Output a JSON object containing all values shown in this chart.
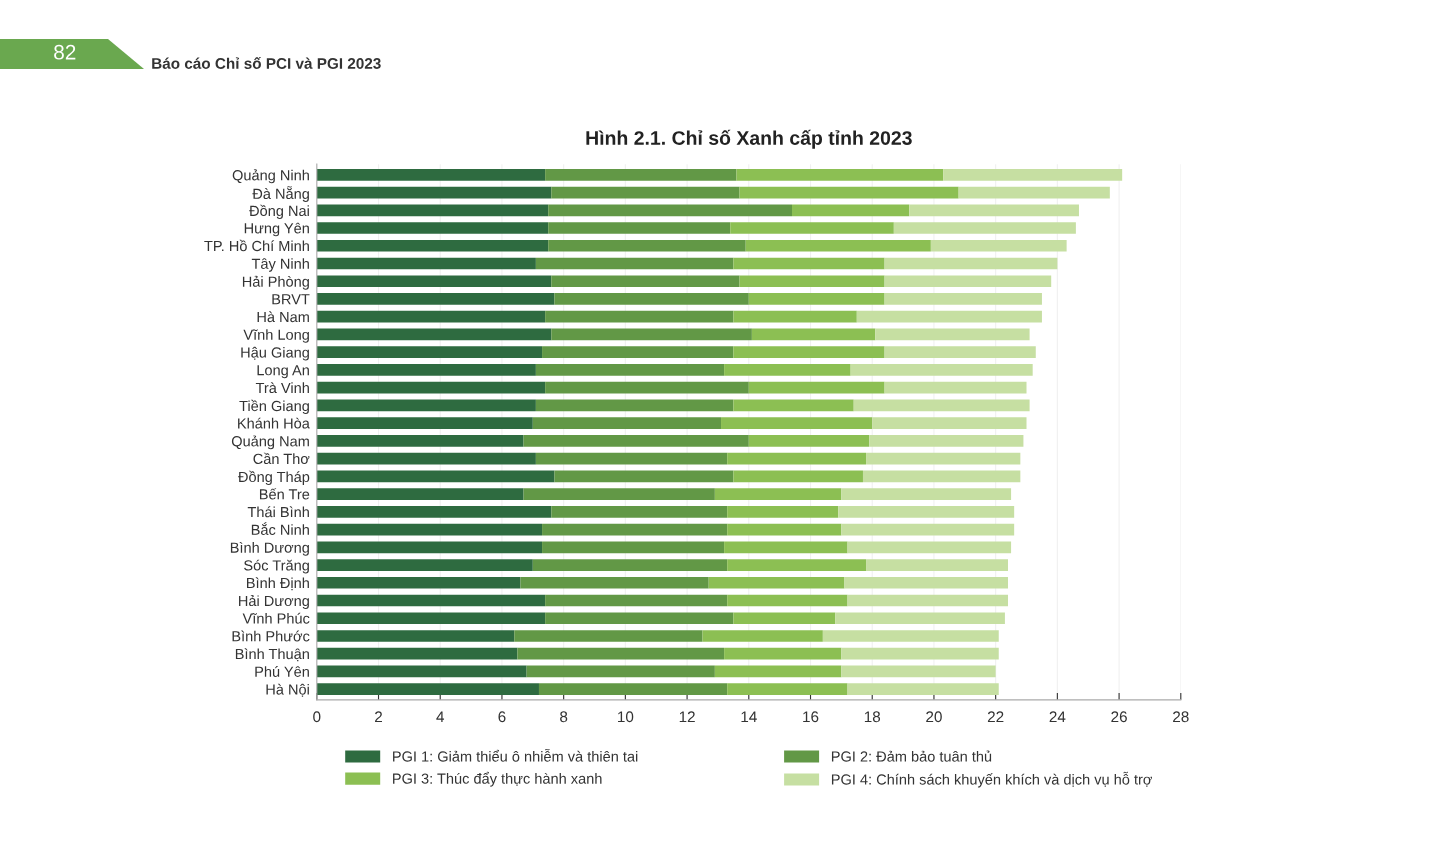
{
  "chart_data": {
    "type": "bar",
    "orientation": "horizontal",
    "stacked": true,
    "title": "Hình 2.1. Chỉ số Xanh cấp tỉnh 2023",
    "annotations": [
      "82",
      "Báo cáo Chỉ số PCI và PGI 2023"
    ],
    "categories": [
      "Quảng Ninh",
      "Đà Nẵng",
      "Đồng Nai",
      "Hưng Yên",
      "TP. Hồ Chí Minh",
      "Tây Ninh",
      "Hải Phòng",
      "BRVT",
      "Hà Nam",
      "Vĩnh Long",
      "Hậu Giang",
      "Long An",
      "Trà Vinh",
      "Tiền Giang",
      "Khánh Hòa",
      "Quảng Nam",
      "Cần Thơ",
      "Đồng Tháp",
      "Bến Tre",
      "Thái Bình",
      "Bắc Ninh",
      "Bình Dương",
      "Sóc Trăng",
      "Bình Định",
      "Hải Dương",
      "Vĩnh Phúc",
      "Bình Phước",
      "Bình Thuận",
      "Phú Yên",
      "Hà Nội"
    ],
    "series": [
      {
        "name": "PGI 1: Giảm thiểu ô nhiễm và thiên tai",
        "color": "#2e6b40",
        "values": [
          7.4,
          7.6,
          7.5,
          7.5,
          7.5,
          7.1,
          7.6,
          7.7,
          7.4,
          7.6,
          7.3,
          7.1,
          7.4,
          7.1,
          7.0,
          6.7,
          7.1,
          7.7,
          6.7,
          7.6,
          7.3,
          7.3,
          7.0,
          6.6,
          7.4,
          7.4,
          6.4,
          6.5,
          6.8,
          7.2
        ]
      },
      {
        "name": "PGI 2: Đảm bảo tuân thủ",
        "color": "#629846",
        "values": [
          6.2,
          6.1,
          7.9,
          5.9,
          6.4,
          6.4,
          6.1,
          6.3,
          6.1,
          6.5,
          6.2,
          6.1,
          6.6,
          6.4,
          6.1,
          7.3,
          6.2,
          5.8,
          6.2,
          5.7,
          6.0,
          5.9,
          6.3,
          6.1,
          5.9,
          6.1,
          6.1,
          6.7,
          6.1,
          6.1
        ]
      },
      {
        "name": "PGI 3: Thúc đẩy thực hành xanh",
        "color": "#8cbf53",
        "values": [
          6.7,
          7.1,
          3.8,
          5.3,
          6.0,
          4.9,
          4.7,
          4.4,
          4.0,
          4.0,
          4.9,
          4.1,
          4.4,
          3.9,
          4.9,
          3.9,
          4.5,
          4.2,
          4.1,
          3.6,
          3.7,
          4.0,
          4.5,
          4.4,
          3.9,
          3.3,
          3.9,
          3.8,
          4.1,
          3.9
        ]
      },
      {
        "name": "PGI 4: Chính sách khuyến khích và dịch vụ hỗ trợ",
        "color": "#c6dfa2",
        "values": [
          5.8,
          4.9,
          5.5,
          5.9,
          4.4,
          5.6,
          5.4,
          5.1,
          6.0,
          5.0,
          4.9,
          5.9,
          4.6,
          5.7,
          5.0,
          5.0,
          5.0,
          5.1,
          5.5,
          5.7,
          5.6,
          5.3,
          4.6,
          5.3,
          5.2,
          5.5,
          5.7,
          5.1,
          5.0,
          4.9
        ]
      }
    ],
    "xlim": [
      0,
      28
    ],
    "xticks": [
      0,
      2,
      4,
      6,
      8,
      10,
      12,
      14,
      16,
      18,
      20,
      22,
      24,
      26,
      28
    ],
    "grid": "x",
    "legend": "bottom"
  }
}
